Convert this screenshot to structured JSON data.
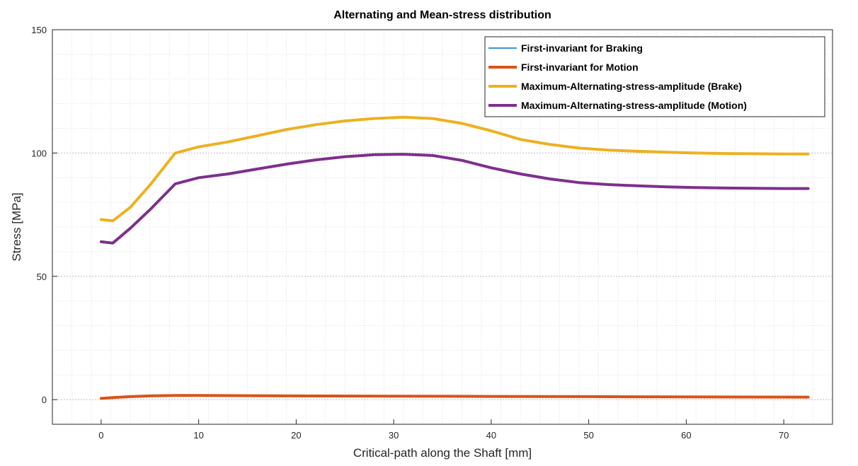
{
  "chart_data": {
    "type": "line",
    "title": "Alternating and Mean-stress distribution",
    "xlabel": "Critical-path along the Shaft [mm]",
    "ylabel": "Stress [MPa]",
    "xlim": [
      -5,
      75
    ],
    "ylim": [
      -10,
      150
    ],
    "xticks": [
      0,
      10,
      20,
      30,
      40,
      50,
      60,
      70
    ],
    "yticks": [
      0,
      50,
      100,
      150
    ],
    "grid": "on (major and minor, dotted)",
    "legend_position": "top-right",
    "series": [
      {
        "name": "First-invariant for Braking",
        "color": "#0072BD",
        "x": [
          0,
          1.2,
          3,
          5,
          7.6,
          10,
          20,
          30,
          40,
          50,
          60,
          72.5
        ],
        "y": [
          0.5,
          0.8,
          1.2,
          1.5,
          1.7,
          1.7,
          1.5,
          1.4,
          1.3,
          1.2,
          1.1,
          1.0
        ]
      },
      {
        "name": "First-invariant for Motion",
        "color": "#D95319",
        "x": [
          0,
          1.2,
          3,
          5,
          7.6,
          10,
          20,
          30,
          40,
          50,
          60,
          72.5
        ],
        "y": [
          0.5,
          0.8,
          1.2,
          1.5,
          1.7,
          1.7,
          1.5,
          1.4,
          1.3,
          1.2,
          1.1,
          1.0
        ]
      },
      {
        "name": "Maximum-Alternating-stress-amplitude (Brake)",
        "color": "#EDB120",
        "x": [
          0,
          1.2,
          3,
          5,
          7.6,
          10,
          13,
          16,
          19,
          22,
          25,
          28,
          31,
          34,
          37,
          40,
          43,
          46,
          49,
          52,
          55,
          58,
          61,
          64,
          67,
          70,
          72.5
        ],
        "y": [
          73,
          72.5,
          78,
          87,
          100,
          102.5,
          104.5,
          107,
          109.5,
          111.5,
          113,
          114,
          114.5,
          114,
          112,
          109,
          105.5,
          103.5,
          102,
          101.2,
          100.7,
          100.3,
          100,
          99.8,
          99.7,
          99.6,
          99.6
        ]
      },
      {
        "name": "Maximum-Alternating-stress-amplitude (Motion)",
        "color": "#7E2F8E",
        "x": [
          0,
          1.2,
          3,
          5,
          7.6,
          10,
          13,
          16,
          19,
          22,
          25,
          28,
          31,
          34,
          37,
          40,
          43,
          46,
          49,
          52,
          55,
          58,
          61,
          64,
          67,
          70,
          72.5
        ],
        "y": [
          64,
          63.5,
          69.5,
          77,
          87.5,
          90,
          91.5,
          93.5,
          95.5,
          97.2,
          98.5,
          99.3,
          99.5,
          99,
          97,
          94,
          91.5,
          89.5,
          88,
          87.2,
          86.7,
          86.3,
          86,
          85.8,
          85.7,
          85.6,
          85.6
        ]
      }
    ]
  }
}
